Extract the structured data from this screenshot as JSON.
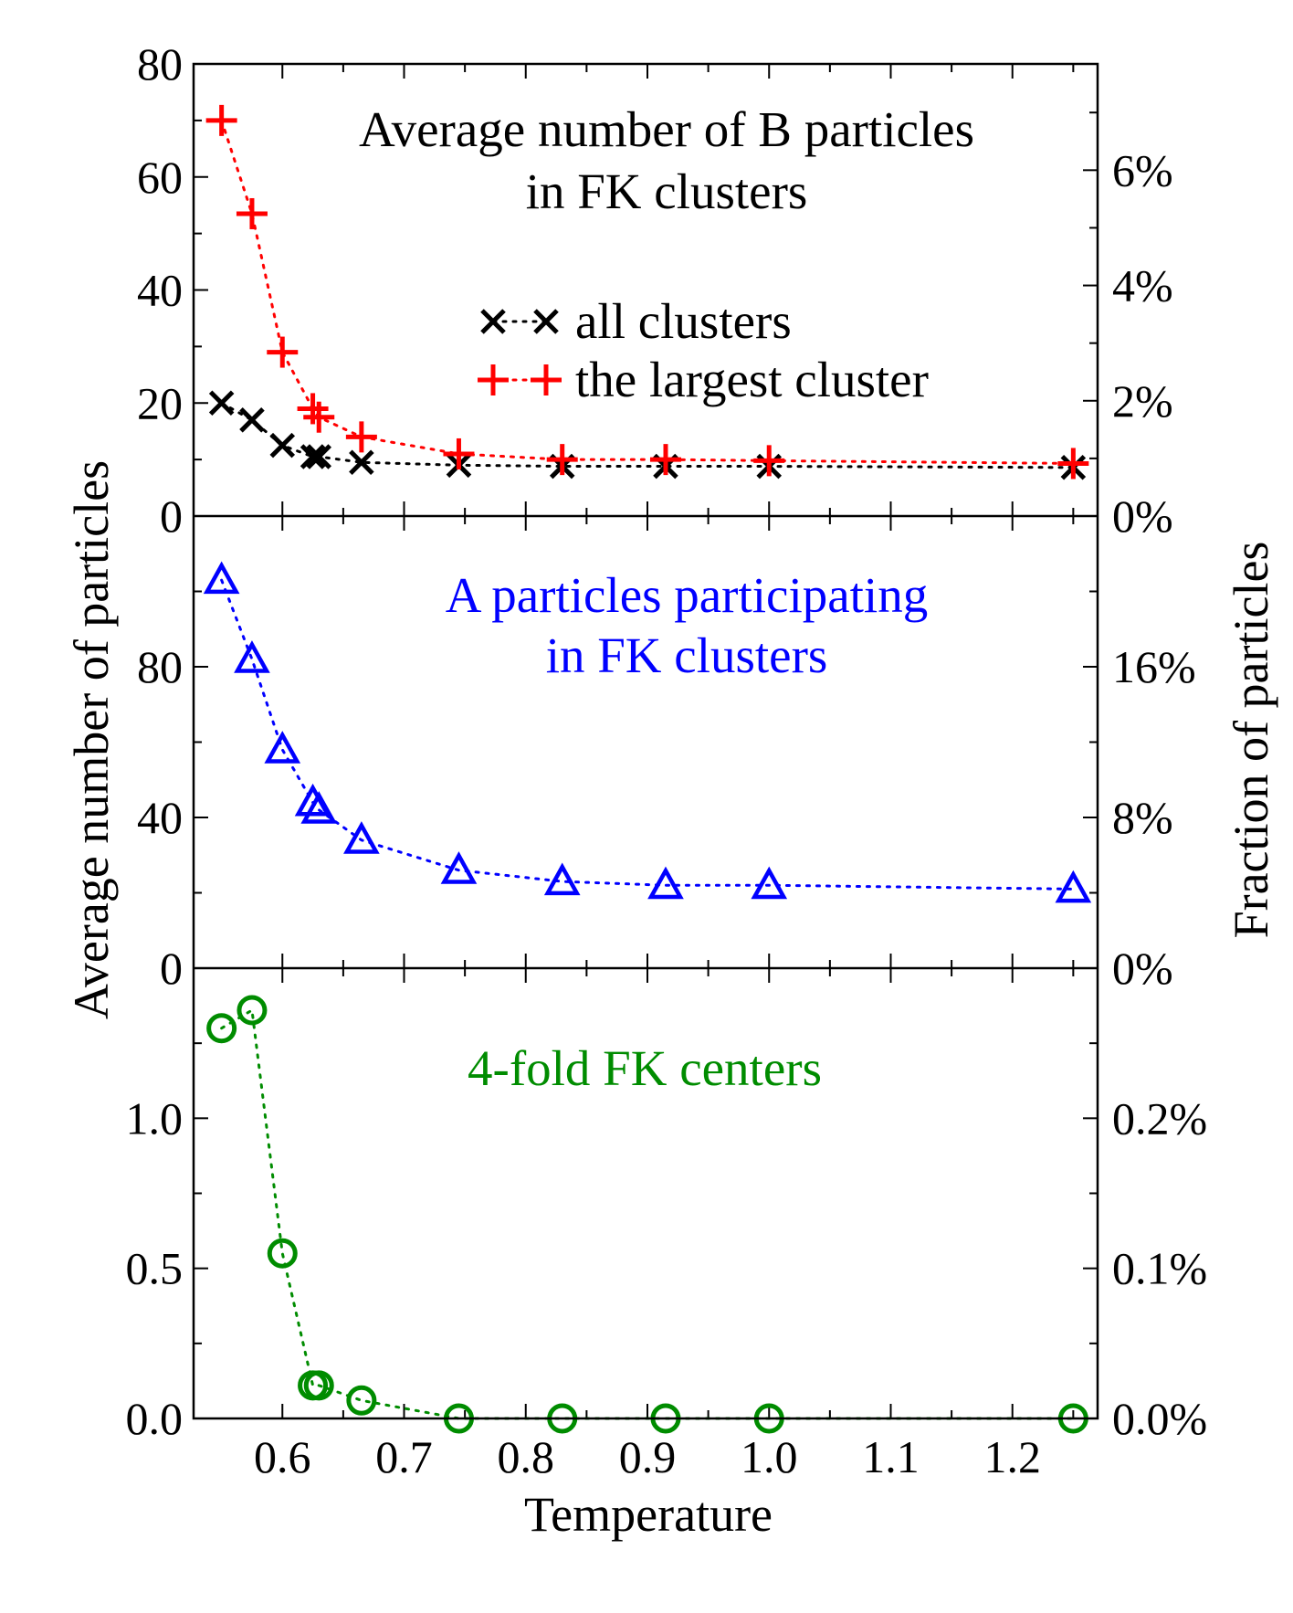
{
  "chart_data": {
    "type": "scatter",
    "xlabel": "Temperature",
    "ylabel_left": "Average number of particles",
    "ylabel_right": "Fraction of particles",
    "xlim": [
      0.527,
      1.27
    ],
    "x_ticks": [
      0.6,
      0.7,
      0.8,
      0.9,
      1.0,
      1.1,
      1.2
    ],
    "x_tick_labels": [
      "0.6",
      "0.7",
      "0.8",
      "0.9",
      "1.0",
      "1.1",
      "1.2"
    ],
    "temperatures": [
      0.55,
      0.575,
      0.6,
      0.625,
      0.63,
      0.665,
      0.745,
      0.83,
      0.915,
      1.0,
      1.25
    ],
    "panels": [
      {
        "annotation": [
          "Average number of B particles",
          "in FK clusters"
        ],
        "annotation_color": "#000000",
        "ylim": [
          0,
          80
        ],
        "left_ticks": [
          0,
          20,
          40,
          60,
          80
        ],
        "left_tick_labels": [
          "0",
          "20",
          "40",
          "60",
          "80"
        ],
        "right_ticks": [
          0,
          20.4,
          40.8,
          61.2
        ],
        "right_tick_labels": [
          "0%",
          "2%",
          "4%",
          "6%"
        ],
        "series": [
          {
            "name": "all clusters",
            "marker": "x",
            "color": "#000000",
            "values": [
              20,
              17,
              12.5,
              10.5,
              10.5,
              9.5,
              9,
              8.8,
              8.8,
              8.8,
              8.6
            ]
          },
          {
            "name": "the largest cluster",
            "marker": "plus",
            "color": "#ff0000",
            "values": [
              70,
              53.5,
              29,
              19,
              17.5,
              14,
              11,
              10,
              10,
              9.8,
              9.3
            ]
          }
        ]
      },
      {
        "annotation": [
          "A particles participating",
          "in FK clusters"
        ],
        "annotation_color": "#0000ff",
        "ylim": [
          0,
          120
        ],
        "left_ticks": [
          0,
          40,
          80
        ],
        "left_tick_labels": [
          "0",
          "40",
          "80"
        ],
        "right_ticks": [
          0,
          40,
          80
        ],
        "right_tick_labels": [
          "0%",
          "8%",
          "16%"
        ],
        "series": [
          {
            "name": "A particles participating in FK clusters",
            "marker": "triangle",
            "color": "#0000ff",
            "values": [
              103,
              82,
              58,
              44,
              42,
              34,
              26,
              23,
              22,
              22,
              21
            ]
          }
        ]
      },
      {
        "annotation": [
          "4-fold FK centers"
        ],
        "annotation_color": "#008c00",
        "ylim": [
          0,
          1.5
        ],
        "left_ticks": [
          0.0,
          0.5,
          1.0
        ],
        "left_tick_labels": [
          "0.0",
          "0.5",
          "1.0"
        ],
        "right_ticks": [
          0.0,
          0.5,
          1.0
        ],
        "right_tick_labels": [
          "0.0%",
          "0.1%",
          "0.2%"
        ],
        "series": [
          {
            "name": "4-fold FK centers",
            "marker": "circle",
            "color": "#008c00",
            "values": [
              1.3,
              1.36,
              0.55,
              0.11,
              0.11,
              0.06,
              0.0,
              0.0,
              0.0,
              0.0,
              0.0
            ]
          }
        ]
      }
    ]
  }
}
